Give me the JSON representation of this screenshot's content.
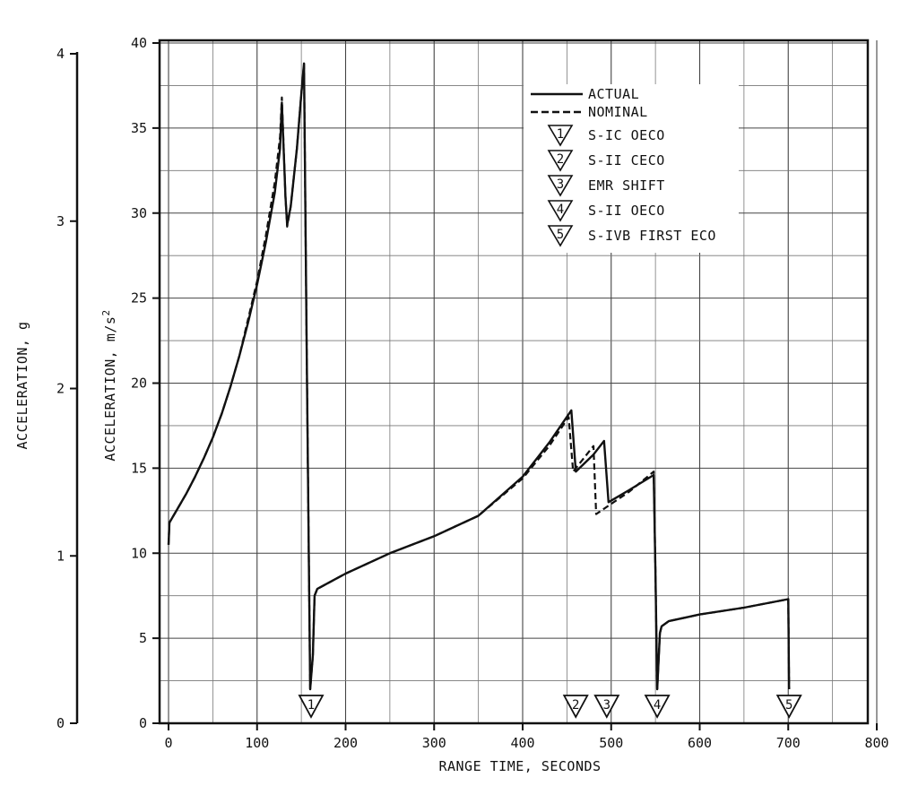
{
  "chart_data": {
    "type": "line",
    "title": "",
    "xlabel": "RANGE TIME, SECONDS",
    "ylabel": "ACCELERATION, m/s",
    "ylabel_sup": "2",
    "ylabel_secondary": "ACCELERATION, g",
    "xlim": [
      0,
      800
    ],
    "ylim": [
      0,
      40
    ],
    "ylim_secondary": [
      0,
      4
    ],
    "x_ticks": [
      "0",
      "100",
      "200",
      "300",
      "400",
      "500",
      "600",
      "700",
      "800"
    ],
    "y_ticks": [
      "0",
      "5",
      "10",
      "15",
      "20",
      "25",
      "30",
      "35",
      "40"
    ],
    "y_secondary_ticks": [
      "0",
      "1",
      "2",
      "3",
      "4"
    ],
    "grid": true,
    "legend_position": "top-right",
    "series": [
      {
        "name": "ACTUAL",
        "style": "solid",
        "points": [
          [
            0,
            10.5
          ],
          [
            1,
            11.8
          ],
          [
            10,
            12.6
          ],
          [
            20,
            13.5
          ],
          [
            30,
            14.5
          ],
          [
            40,
            15.6
          ],
          [
            50,
            16.8
          ],
          [
            60,
            18.2
          ],
          [
            70,
            19.8
          ],
          [
            80,
            21.6
          ],
          [
            90,
            23.6
          ],
          [
            100,
            25.8
          ],
          [
            110,
            28.3
          ],
          [
            120,
            31.2
          ],
          [
            126,
            33.8
          ],
          [
            128,
            36.5
          ],
          [
            132,
            31
          ],
          [
            134,
            29.3
          ],
          [
            138,
            30.4
          ],
          [
            145,
            33.8
          ],
          [
            150,
            37
          ],
          [
            153,
            38.8
          ],
          [
            156,
            22
          ],
          [
            160,
            2
          ],
          [
            163,
            4
          ],
          [
            165,
            7.5
          ],
          [
            168,
            7.9
          ],
          [
            200,
            8.8
          ],
          [
            250,
            10
          ],
          [
            300,
            11
          ],
          [
            350,
            12.2
          ],
          [
            400,
            14.5
          ],
          [
            430,
            16.5
          ],
          [
            455,
            18.4
          ],
          [
            460,
            14.8
          ],
          [
            480,
            15.8
          ],
          [
            492,
            16.6
          ],
          [
            497,
            13
          ],
          [
            520,
            13.7
          ],
          [
            548,
            14.6
          ],
          [
            550,
            9
          ],
          [
            552,
            2
          ],
          [
            555,
            5.3
          ],
          [
            557,
            5.7
          ],
          [
            565,
            6
          ],
          [
            600,
            6.4
          ],
          [
            650,
            6.8
          ],
          [
            700,
            7.3
          ],
          [
            701,
            2
          ]
        ]
      },
      {
        "name": "NOMINAL",
        "style": "dashed",
        "points": [
          [
            0,
            10.5
          ],
          [
            1,
            11.8
          ],
          [
            10,
            12.6
          ],
          [
            20,
            13.5
          ],
          [
            30,
            14.5
          ],
          [
            40,
            15.6
          ],
          [
            50,
            16.8
          ],
          [
            60,
            18.2
          ],
          [
            70,
            19.8
          ],
          [
            80,
            21.6
          ],
          [
            90,
            23.8
          ],
          [
            100,
            26
          ],
          [
            110,
            28.7
          ],
          [
            120,
            31.8
          ],
          [
            126,
            34.5
          ],
          [
            128,
            36.8
          ],
          [
            132,
            31
          ],
          [
            134,
            29.2
          ],
          [
            138,
            30.4
          ],
          [
            145,
            33.8
          ],
          [
            150,
            37
          ],
          [
            153,
            38.8
          ],
          [
            156,
            22
          ],
          [
            160,
            2
          ],
          [
            163,
            4
          ],
          [
            165,
            7.5
          ],
          [
            168,
            7.9
          ],
          [
            200,
            8.8
          ],
          [
            250,
            10
          ],
          [
            300,
            11
          ],
          [
            350,
            12.2
          ],
          [
            400,
            14.4
          ],
          [
            430,
            16.3
          ],
          [
            452,
            18
          ],
          [
            457,
            14.8
          ],
          [
            480,
            16.3
          ],
          [
            483,
            12.3
          ],
          [
            500,
            12.9
          ],
          [
            520,
            13.6
          ],
          [
            548,
            14.8
          ],
          [
            550,
            9
          ],
          [
            552,
            2
          ],
          [
            555,
            5.3
          ],
          [
            557,
            5.7
          ],
          [
            565,
            6
          ],
          [
            600,
            6.4
          ],
          [
            650,
            6.8
          ],
          [
            700,
            7.3
          ],
          [
            701,
            2
          ]
        ]
      }
    ],
    "events": [
      {
        "number": "1",
        "name": "S-IC OECO",
        "x": 161
      },
      {
        "number": "2",
        "name": "S-II CECO",
        "x": 460
      },
      {
        "number": "3",
        "name": "EMR SHIFT",
        "x": 495
      },
      {
        "number": "4",
        "name": "S-II OECO",
        "x": 552
      },
      {
        "number": "5",
        "name": "S-IVB FIRST ECO",
        "x": 701
      }
    ]
  }
}
